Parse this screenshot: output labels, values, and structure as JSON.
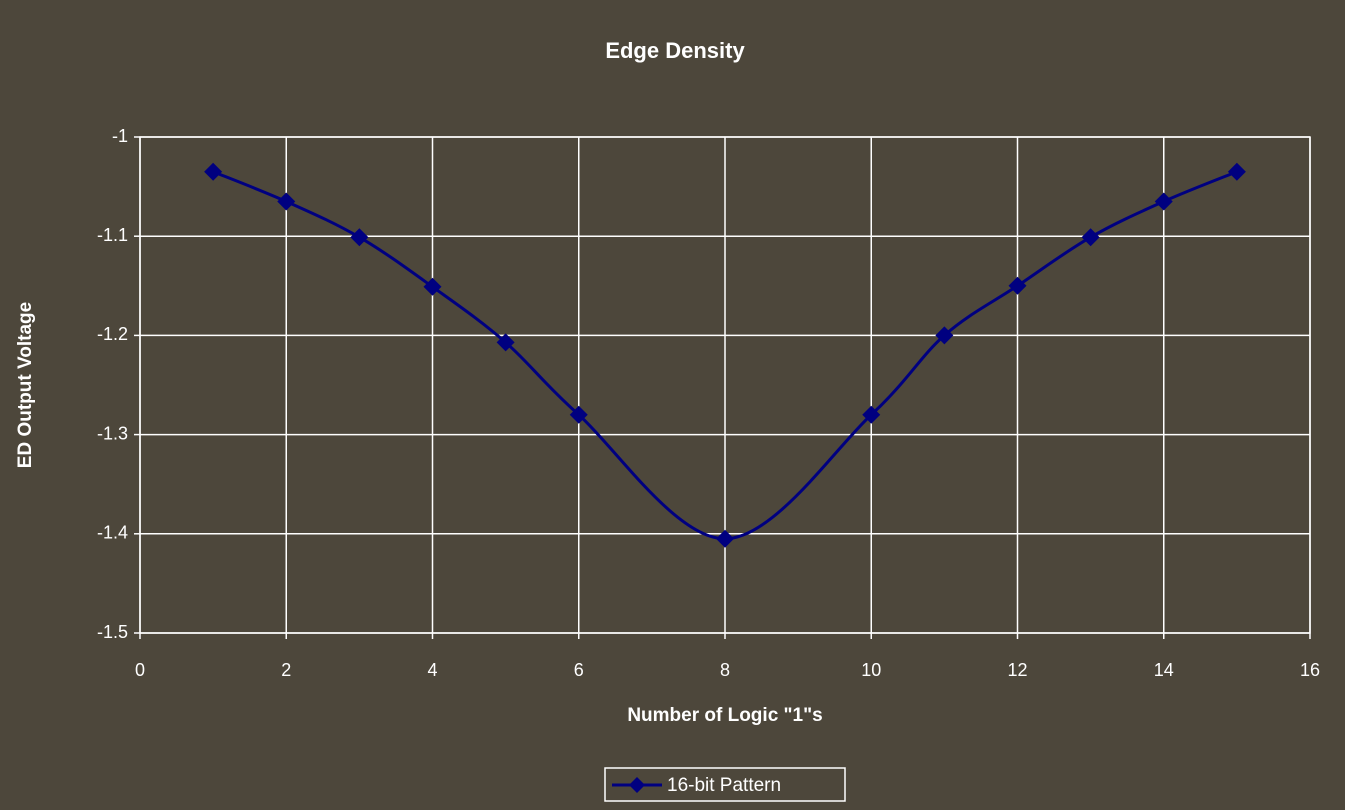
{
  "chart_data": {
    "type": "line",
    "title": "Edge Density",
    "x_label": "Number of Logic \"1\"s",
    "y_label": "ED Output Voltage",
    "x": [
      1,
      2,
      3,
      4,
      5,
      6,
      8,
      10,
      11,
      12,
      13,
      14,
      15
    ],
    "series": [
      {
        "name": "16-bit Pattern",
        "color": "#000080",
        "values": [
          -1.035,
          -1.065,
          -1.101,
          -1.151,
          -1.207,
          -1.28,
          -1.405,
          -1.28,
          -1.2,
          -1.15,
          -1.101,
          -1.065,
          -1.035
        ]
      }
    ],
    "xlim": [
      0,
      16
    ],
    "xticks": [
      0,
      2,
      4,
      6,
      8,
      10,
      12,
      14,
      16
    ],
    "ylim": [
      -1.5,
      -1
    ],
    "yticks": [
      -1,
      -1.1,
      -1.2,
      -1.3,
      -1.4,
      -1.5
    ],
    "grid": true,
    "smooth": true,
    "legend": "bottom"
  }
}
